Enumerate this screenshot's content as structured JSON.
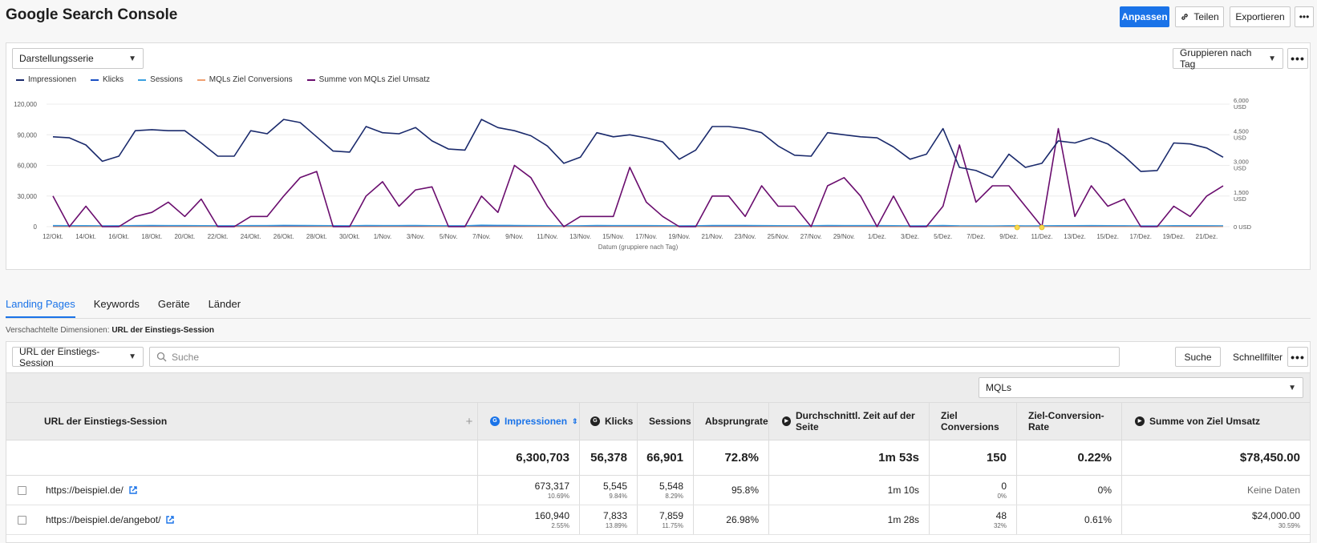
{
  "header": {
    "title": "Google Search Console",
    "customize_label": "Anpassen",
    "share_label": "Teilen",
    "export_label": "Exportieren",
    "more_label": "•••"
  },
  "chart_controls": {
    "series_select": "Darstellungsserie",
    "group_select": "Gruppieren nach Tag",
    "more_label": "•••"
  },
  "colors": {
    "impressions": "#1a2a6c",
    "clicks": "#1a4fc4",
    "sessions": "#3aa0e0",
    "conversions": "#f0a070",
    "revenue": "#6a0d6e",
    "accent": "#1a73e8"
  },
  "chart_data": {
    "type": "line",
    "xlabel": "Datum (gruppiere nach Tag)",
    "tick_labels": [
      "12/Okt.",
      "14/Okt.",
      "16/Okt.",
      "18/Okt.",
      "20/Okt.",
      "22/Okt.",
      "24/Okt.",
      "26/Okt.",
      "28/Okt.",
      "30/Okt.",
      "1/Nov.",
      "3/Nov.",
      "5/Nov.",
      "7/Nov.",
      "9/Nov.",
      "11/Nov.",
      "13/Nov.",
      "15/Nov.",
      "17/Nov.",
      "19/Nov.",
      "21/Nov.",
      "23/Nov.",
      "25/Nov.",
      "27/Nov.",
      "29/Nov.",
      "1/Dez.",
      "3/Dez.",
      "5/Dez.",
      "7/Dez.",
      "9/Dez.",
      "11/Dez.",
      "13/Dez.",
      "15/Dez.",
      "17/Dez.",
      "19/Dez.",
      "21/Dez."
    ],
    "ylim_left": [
      0,
      120000
    ],
    "yticks_left": [
      "0",
      "30,000",
      "60,000",
      "90,000",
      "120,000"
    ],
    "ylim_right": [
      0,
      6000
    ],
    "yticks_right": [
      "0 USD",
      "1,500 USD",
      "3,000 USD",
      "4,500 USD",
      "6,000 USD"
    ],
    "legend": "top-left",
    "grid": true,
    "series": [
      {
        "name": "Impressionen",
        "axis": "left",
        "values": [
          88000,
          87000,
          80000,
          64000,
          69000,
          94000,
          95000,
          94000,
          94000,
          82000,
          69000,
          69000,
          94000,
          91000,
          105000,
          102000,
          88000,
          74000,
          73000,
          98000,
          92000,
          91000,
          97000,
          84000,
          76000,
          75000,
          105000,
          97000,
          94000,
          89000,
          79000,
          62000,
          68000,
          92000,
          88000,
          90000,
          87000,
          83000,
          66000,
          75000,
          98000,
          98000,
          96000,
          92000,
          79000,
          70000,
          69000,
          92000,
          90000,
          88000,
          87000,
          78000,
          66000,
          71000,
          96000,
          58000,
          55000,
          48000,
          71000,
          58000,
          62000,
          84000,
          82000,
          87000,
          81000,
          69000,
          54000,
          55000,
          82000,
          81000,
          77000,
          68000
        ]
      },
      {
        "name": "Klicks",
        "axis": "left",
        "values": [
          800,
          800,
          800,
          800,
          800,
          800,
          800,
          800,
          800,
          800,
          800,
          800,
          800,
          800,
          800,
          800,
          800,
          800,
          800,
          800,
          800,
          800,
          800,
          800,
          800,
          800,
          800,
          800,
          800,
          800,
          800,
          800,
          800,
          800,
          800,
          800,
          800,
          800,
          800,
          800,
          800,
          800,
          800,
          800,
          800,
          800,
          800,
          800,
          800,
          800,
          800,
          800,
          800,
          800,
          800,
          800,
          800,
          800,
          800,
          800,
          800,
          800,
          800,
          800,
          800,
          800,
          800,
          800,
          800,
          800,
          800,
          800
        ]
      },
      {
        "name": "Sessions",
        "axis": "left",
        "values": [
          1200,
          1100,
          1100,
          900,
          1000,
          1200,
          1300,
          1200,
          1200,
          1100,
          1000,
          1000,
          1200,
          1200,
          1400,
          1300,
          1200,
          1100,
          1000,
          1300,
          1200,
          1200,
          1300,
          1100,
          1000,
          1000,
          1600,
          1400,
          1300,
          1200,
          1100,
          900,
          1000,
          1300,
          1200,
          1200,
          1200,
          1100,
          900,
          1000,
          1300,
          1300,
          1300,
          1200,
          1100,
          1000,
          1000,
          1300,
          1200,
          1200,
          1200,
          1100,
          900,
          1000,
          1300,
          900,
          800,
          700,
          1000,
          800,
          900,
          1100,
          1100,
          1200,
          1100,
          1000,
          800,
          800,
          1100,
          1100,
          1000,
          900
        ]
      },
      {
        "name": "MQLs Ziel Conversions",
        "axis": "right",
        "values": [
          0,
          0,
          0,
          0,
          0,
          0,
          0,
          0,
          0,
          0,
          0,
          0,
          0,
          0,
          0,
          0,
          0,
          0,
          0,
          0,
          0,
          0,
          0,
          0,
          0,
          0,
          0,
          0,
          0,
          0,
          0,
          0,
          0,
          0,
          0,
          0,
          0,
          0,
          0,
          0,
          0,
          0,
          0,
          0,
          0,
          0,
          0,
          0,
          0,
          0,
          0,
          0,
          0,
          0,
          0,
          0,
          0,
          0,
          0,
          0,
          0,
          0,
          0,
          0,
          0,
          0,
          0,
          0,
          0,
          0,
          0,
          0
        ]
      },
      {
        "name": "Summe von MQLs Ziel Umsatz",
        "axis": "right",
        "values": [
          1500,
          0,
          1000,
          0,
          0,
          500,
          700,
          1200,
          500,
          1350,
          0,
          0,
          500,
          500,
          1500,
          2400,
          2700,
          0,
          0,
          1500,
          2200,
          1000,
          1800,
          1950,
          0,
          0,
          1500,
          700,
          3000,
          2400,
          1000,
          0,
          500,
          500,
          500,
          2900,
          1200,
          500,
          0,
          0,
          1500,
          1500,
          500,
          2000,
          1000,
          1000,
          0,
          2000,
          2400,
          1500,
          0,
          1500,
          0,
          0,
          1000,
          4000,
          1200,
          2000,
          2000,
          1000,
          0,
          4800,
          500,
          2000,
          1000,
          1350,
          0,
          0,
          1000,
          500,
          1500,
          2000
        ]
      }
    ]
  },
  "tabs": [
    "Landing Pages",
    "Keywords",
    "Geräte",
    "Länder"
  ],
  "nested": {
    "label": "Verschachtelte Dimensionen:",
    "value": "URL der Einstiegs-Session"
  },
  "table_controls": {
    "dimension_select": "URL der Einstiegs-Session",
    "search_placeholder": "Suche",
    "search_button": "Suche",
    "quick_filter": "Schnellfilter",
    "more_label": "•••",
    "metric_select": "MQLs"
  },
  "table": {
    "headers": {
      "url": "URL der Einstiegs-Session",
      "add": "+",
      "impressions": "Impressionen",
      "clicks": "Klicks",
      "sessions": "Sessions",
      "bounce": "Absprungrate",
      "avg_time": "Durchschnittl. Zeit auf der Seite",
      "conversions": "Ziel Conversions",
      "conv_rate": "Ziel-Conversion-Rate",
      "revenue": "Summe von Ziel Umsatz"
    },
    "totals": {
      "impressions": "6,300,703",
      "clicks": "56,378",
      "sessions": "66,901",
      "bounce": "72.8%",
      "avg_time": "1m 53s",
      "conversions": "150",
      "conv_rate": "0.22%",
      "revenue": "$78,450.00"
    },
    "rows": [
      {
        "url": "https://beispiel.de/",
        "impressions": "673,317",
        "impressions_pct": "10.69%",
        "clicks": "5,545",
        "clicks_pct": "9.84%",
        "sessions": "5,548",
        "sessions_pct": "8.29%",
        "bounce": "95.8%",
        "avg_time": "1m 10s",
        "conversions": "0",
        "conversions_pct": "0%",
        "conv_rate": "0%",
        "revenue": "Keine Daten",
        "revenue_pct": ""
      },
      {
        "url": "https://beispiel.de/angebot/",
        "impressions": "160,940",
        "impressions_pct": "2.55%",
        "clicks": "7,833",
        "clicks_pct": "13.89%",
        "sessions": "7,859",
        "sessions_pct": "11.75%",
        "bounce": "26.98%",
        "avg_time": "1m 28s",
        "conversions": "48",
        "conversions_pct": "32%",
        "conv_rate": "0.61%",
        "revenue": "$24,000.00",
        "revenue_pct": "30.59%"
      }
    ]
  }
}
